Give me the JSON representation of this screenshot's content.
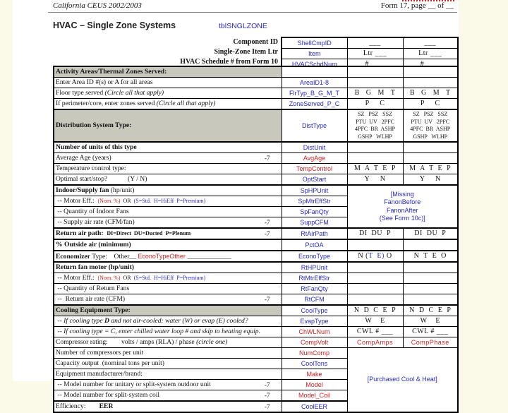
{
  "colors": {
    "field_blue": "#2929cc",
    "field_red": "#cc2222",
    "section_grey": "#c9c8bc",
    "page_cream": "#fbfae8"
  },
  "header": {
    "left": "California CEUS 2002/2003",
    "right": "Form 17, page __ of __"
  },
  "title": "HVAC – Single Zone Systems",
  "table_ref": "tblSNGLZONE",
  "id_table": {
    "labels": [
      "Component ID",
      "Single-Zone Item Ltr",
      "HVAC Schedule # from Form 10"
    ],
    "rows": [
      {
        "field": "ShellCmpID",
        "fc": "blue",
        "c1": "___",
        "c2": "___"
      },
      {
        "field": "Item",
        "fc": "blue",
        "c1": "Ltr ___",
        "c2": "Ltr ___"
      },
      {
        "field": "HVACSchdNum",
        "fc": "blue",
        "c1": "#  ___",
        "c2": "#  ___"
      }
    ]
  },
  "main_table": {
    "rows": [
      {
        "sec": true,
        "thick": true,
        "label": [
          {
            "t": "Activity Areas/Thermal Zones Served:",
            "s": "b"
          }
        ],
        "field": "",
        "c1": "",
        "c2": ""
      },
      {
        "label": [
          {
            "t": "Enter Area ID #(s) or A for all areas"
          }
        ],
        "field": "AreaID1-8",
        "fc": "blue",
        "c1": "",
        "c2": ""
      },
      {
        "label": [
          {
            "t": "Floor type served "
          },
          {
            "t": "(Circle all that apply)",
            "s": "i"
          }
        ],
        "field": "FlrTyp_B_G_M_T",
        "fc": "blue",
        "c1": "B   G   M   T",
        "c2": "B   G   M   T"
      },
      {
        "label": [
          {
            "t": "If perimeter/core, enter zones served "
          },
          {
            "t": "(Circle all that apply)",
            "s": "i"
          }
        ],
        "field": "ZoneServed_P_C",
        "fc": "blue",
        "c1": "P     C",
        "c2": "P     C"
      },
      {
        "sec": true,
        "thick": true,
        "tall": true,
        "label": [
          {
            "t": "Distribution System Type:",
            "s": "b"
          }
        ],
        "field": "DistType",
        "fc": "blue",
        "c1": "SZ   PSZ   SSZ\nPTU  UV   2PFC\n4PFC  BR  ASHP\nGSHP   WLHP",
        "c2": "SZ   PSZ   SSZ\nPTU  UV   2PFC\n4PFC  BR  ASHP\nGSHP   WLHP"
      },
      {
        "thick": true,
        "label": [
          {
            "t": "Number of units of this type",
            "s": "b"
          }
        ],
        "field": "DistUnit",
        "fc": "blue",
        "c1": "",
        "c2": ""
      },
      {
        "label": [
          {
            "t": "Average Age (years)"
          }
        ],
        "note": "-7",
        "field": "AvgAge",
        "fc": "red",
        "c1": "",
        "c2": ""
      },
      {
        "label": [
          {
            "t": "Temperature control type:"
          }
        ],
        "field": "TempControl",
        "fc": "red",
        "c1": "M  A  T  E  P",
        "c2": "M  A  T  E  P"
      },
      {
        "label": [
          {
            "t": "Optimal start/stop?            (Y / N)"
          }
        ],
        "field": "OptStart",
        "fc": "blue",
        "c1": "Y     N",
        "c2": "Y     N"
      },
      {
        "thick": true,
        "label": [
          {
            "t": "Indoor/Supply fan ",
            "s": "b"
          },
          {
            "t": "(hp/unit)"
          }
        ],
        "field": "SpHPUnit",
        "fc": "blue",
        "mergeRight": {
          "rows": 4,
          "lines": "[Missing\nFanonBefore\nFanonAfter\n(See Form 10c)]"
        }
      },
      {
        "label": [
          {
            "t": " -- Motor Eff.:  "
          },
          {
            "t": "(Nom. %)",
            "s": "sr"
          },
          {
            "t": "  OR  ",
            "s": "sm"
          },
          {
            "t": "(S=Std.  H=HiEff  P=Premium)",
            "s": "sb"
          }
        ],
        "field": "SpMtrEffStr",
        "fc": "blue",
        "noRight": true
      },
      {
        "label": [
          {
            "t": " -- Quantity of Indoor Fans"
          }
        ],
        "field": "SpFanQty",
        "fc": "blue",
        "noRight": true
      },
      {
        "label": [
          {
            "t": " -- Supply air rate (CFM/fan)"
          }
        ],
        "note": "-7",
        "field": "SuppCFM",
        "fc": "blue",
        "noRight": true
      },
      {
        "thick": true,
        "label": [
          {
            "t": "Return air path:  ",
            "s": "b"
          },
          {
            "t": "DI=Direct  DU=Ducted  P=Plenum",
            "s": "smb"
          }
        ],
        "note": "-7",
        "field": "RtAirPath",
        "fc": "blue",
        "c1": "DI  DU  P",
        "c2": "DI  DU  P"
      },
      {
        "thick": true,
        "label": [
          {
            "t": "% Outside air (minimum)",
            "s": "b"
          }
        ],
        "field": "PctOA",
        "fc": "blue",
        "c1": "",
        "c2": ""
      },
      {
        "thick": true,
        "label": [
          {
            "t": "Economizer ",
            "s": "b"
          },
          {
            "t": "Type:    Other__ "
          },
          {
            "t": "EconoTypeOther",
            "s": "red"
          },
          {
            "t": " _____________"
          }
        ],
        "field": "EconoType",
        "fc": "blue",
        "c1seg": [
          {
            "t": "N ("
          },
          {
            "t": "T  E)",
            "s": "blue"
          },
          {
            "t": " O"
          }
        ],
        "c2": "N  T  E  O"
      },
      {
        "thick": true,
        "label": [
          {
            "t": "Return fan motor (hp/unit)",
            "s": "b"
          }
        ],
        "field": "RtHPUnit",
        "fc": "blue",
        "c1": "",
        "c2": ""
      },
      {
        "label": [
          {
            "t": " -- Motor Eff.:  "
          },
          {
            "t": "(Nom. %)",
            "s": "sr"
          },
          {
            "t": "  OR  ",
            "s": "sm"
          },
          {
            "t": "(S=Std.  H=HiEff  P=Premium)",
            "s": "sb"
          }
        ],
        "field": "RtMtrEffStr",
        "fc": "blue",
        "c1": "",
        "c2": ""
      },
      {
        "label": [
          {
            "t": " -- Quantity of Return Fans"
          }
        ],
        "field": "RtFanQty",
        "fc": "blue",
        "c1": "",
        "c2": ""
      },
      {
        "label": [
          {
            "t": " --  Return air rate (CFM)"
          }
        ],
        "note": "-7",
        "field": "RtCFM",
        "fc": "blue",
        "c1": "",
        "c2": ""
      },
      {
        "sec": true,
        "thick": true,
        "label": [
          {
            "t": "Cooling Equipment Type:",
            "s": "b"
          }
        ],
        "field": "CoolType",
        "fc": "blue",
        "c1": "N  D  C  E  P",
        "c2": "N  D  C  E  P"
      },
      {
        "label": [
          {
            "t": " -- If cooling type ",
            "s": "i"
          },
          {
            "t": "D",
            "s": "bi"
          },
          {
            "t": " and not air-cooled: water (W) or evap (E) cooled?",
            "s": "i"
          }
        ],
        "field": "EvapType",
        "fc": "blue",
        "c1": "W    E",
        "c2": "W    E"
      },
      {
        "label": [
          {
            "t": " -- If cooling type = ",
            "s": "i"
          },
          {
            "t": "C",
            "s": "i"
          },
          {
            "t": ", enter chilled water loop # and skip to heating equip.",
            "s": "i"
          }
        ],
        "field": "ChWLNum",
        "fc": "red",
        "c1": "CWL # ___",
        "c2": "CWL # ___"
      },
      {
        "label": [
          {
            "t": "Compressor rating:        volts / amps (RLA) / phase "
          },
          {
            "t": "(circle one)",
            "s": "i"
          }
        ],
        "field": "CompVolt",
        "fc": "red",
        "c1seg": [
          {
            "t": "CompAmps",
            "s": "redf"
          }
        ],
        "c2seg": [
          {
            "t": "CompPhase",
            "s": "redf"
          }
        ]
      },
      {
        "label": [
          {
            "t": "Number of compressors per unit"
          }
        ],
        "field": "NumComp",
        "fc": "red",
        "mergeRight": {
          "rows": 6,
          "lines": "[Purchased Cool & Heat]"
        }
      },
      {
        "label": [
          {
            "t": "Capacity output  (nominal tons per unit)"
          }
        ],
        "field": "CoolTons",
        "fc": "blue",
        "noRight": true
      },
      {
        "label": [
          {
            "t": "Equipment manufacturer/brand:"
          }
        ],
        "field": "Make",
        "fc": "red",
        "noRight": true
      },
      {
        "label": [
          {
            "t": " -- Model number for unitary or split-system outdoor unit"
          }
        ],
        "note": "-7",
        "field": "Model",
        "fc": "red",
        "noRight": true
      },
      {
        "label": [
          {
            "t": " -- Model number for split-system coil"
          }
        ],
        "note": "-7",
        "field": "Model_Coil",
        "fc": "red",
        "noRight": true
      },
      {
        "thick": true,
        "label": [
          {
            "t": "Efficiency:        "
          },
          {
            "t": "EER",
            "s": "b"
          }
        ],
        "note": "-7",
        "field": "CoolEER",
        "fc": "blue",
        "noRight": true
      }
    ]
  }
}
